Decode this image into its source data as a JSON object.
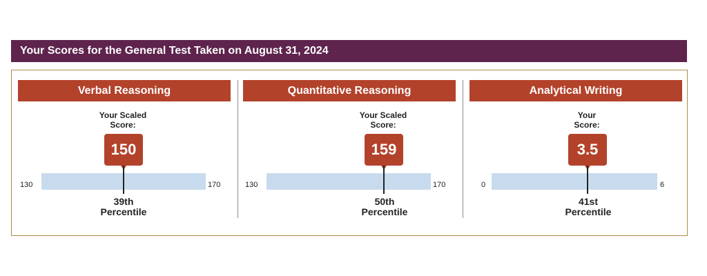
{
  "header": {
    "title": "Your Scores for the General Test Taken on August 31, 2024"
  },
  "sections": [
    {
      "title": "Verbal Reasoning",
      "score_label_line1": "Your Scaled",
      "score_label_line2": "Score:",
      "score": "150",
      "range_min": "130",
      "range_max": "170",
      "percentile_value": "39th",
      "percentile_label": "Percentile",
      "score_position_fraction": 0.5
    },
    {
      "title": "Quantitative Reasoning",
      "score_label_line1": "Your Scaled",
      "score_label_line2": "Score:",
      "score": "159",
      "range_min": "130",
      "range_max": "170",
      "percentile_value": "50th",
      "percentile_label": "Percentile",
      "score_position_fraction": 0.725
    },
    {
      "title": "Analytical Writing",
      "score_label_line1": "Your",
      "score_label_line2": "Score:",
      "score": "3.5",
      "range_min": "0",
      "range_max": "6",
      "percentile_value": "41st",
      "percentile_label": "Percentile",
      "score_position_fraction": 0.583
    }
  ],
  "colors": {
    "header_bg": "#5e244d",
    "section_header_bg": "#b3422b",
    "score_box_bg": "#b3422b",
    "range_bar": "#c8dbee",
    "frame_border": "#b08a48"
  }
}
